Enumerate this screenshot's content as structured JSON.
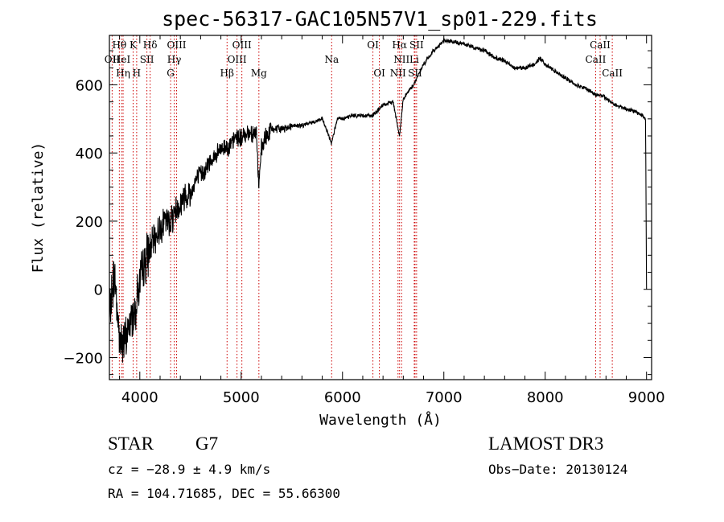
{
  "chart_data": {
    "type": "line",
    "title": "spec-56317-GAC105N57V1_sp01-229.fits",
    "xlabel": "Wavelength (Å)",
    "ylabel": "Flux (relative)",
    "xlim": [
      3700,
      9050
    ],
    "ylim": [
      -265,
      745
    ],
    "xticks": [
      4000,
      5000,
      6000,
      7000,
      8000,
      9000
    ],
    "xtick_labels": [
      "4000",
      "5000",
      "6000",
      "7000",
      "8000",
      "9000"
    ],
    "yticks": [
      -200,
      0,
      200,
      400,
      600
    ],
    "ytick_labels": [
      "−200",
      "0",
      "200",
      "400",
      "600"
    ],
    "spectrum": {
      "x": [
        3700,
        3750,
        3800,
        3850,
        3900,
        3950,
        4000,
        4050,
        4100,
        4150,
        4200,
        4250,
        4300,
        4350,
        4400,
        4450,
        4500,
        4550,
        4600,
        4650,
        4700,
        4750,
        4800,
        4850,
        4900,
        4950,
        5000,
        5050,
        5100,
        5150,
        5175,
        5200,
        5250,
        5300,
        5400,
        5500,
        5600,
        5700,
        5800,
        5890,
        5950,
        6000,
        6100,
        6200,
        6300,
        6400,
        6500,
        6563,
        6600,
        6700,
        6800,
        6900,
        7000,
        7100,
        7200,
        7300,
        7400,
        7500,
        7600,
        7700,
        7800,
        7900,
        7950,
        8000,
        8100,
        8200,
        8300,
        8400,
        8500,
        8550,
        8600,
        8700,
        8800,
        8900,
        8960,
        8990,
        9000
      ],
      "y": [
        -80,
        50,
        -150,
        -160,
        -100,
        -60,
        20,
        80,
        120,
        150,
        180,
        200,
        200,
        230,
        250,
        280,
        280,
        320,
        340,
        350,
        380,
        390,
        410,
        420,
        420,
        450,
        440,
        460,
        460,
        460,
        300,
        410,
        450,
        470,
        470,
        480,
        480,
        490,
        500,
        430,
        500,
        500,
        510,
        510,
        510,
        540,
        550,
        450,
        560,
        600,
        660,
        700,
        730,
        725,
        720,
        710,
        700,
        680,
        670,
        650,
        650,
        660,
        680,
        660,
        640,
        620,
        600,
        590,
        570,
        570,
        560,
        540,
        530,
        520,
        510,
        500,
        0
      ]
    },
    "emission_lines": [
      {
        "label": "OII",
        "wavelength": 3727,
        "row": 2
      },
      {
        "label": "Hθ",
        "wavelength": 3798,
        "row": 1
      },
      {
        "label": "HeI",
        "wavelength": 3820,
        "row": 2
      },
      {
        "label": "Hη",
        "wavelength": 3835,
        "row": 3
      },
      {
        "label": "K",
        "wavelength": 3934,
        "row": 1
      },
      {
        "label": "H",
        "wavelength": 3969,
        "row": 3
      },
      {
        "label": "SII",
        "wavelength": 4070,
        "row": 2
      },
      {
        "label": "Hδ",
        "wavelength": 4102,
        "row": 1
      },
      {
        "label": "OIII",
        "wavelength": 4363,
        "row": 1
      },
      {
        "label": "Hγ",
        "wavelength": 4340,
        "row": 2
      },
      {
        "label": "G",
        "wavelength": 4304,
        "row": 3
      },
      {
        "label": "Hβ",
        "wavelength": 4861,
        "row": 3
      },
      {
        "label": "OIII",
        "wavelength": 4959,
        "row": 2
      },
      {
        "label": "OIII",
        "wavelength": 5007,
        "row": 1
      },
      {
        "label": "Mg",
        "wavelength": 5175,
        "row": 3
      },
      {
        "label": "Na",
        "wavelength": 5893,
        "row": 2
      },
      {
        "label": "OI",
        "wavelength": 6300,
        "row": 1
      },
      {
        "label": "OI",
        "wavelength": 6364,
        "row": 3
      },
      {
        "label": "NII",
        "wavelength": 6548,
        "row": 3
      },
      {
        "label": "Hα",
        "wavelength": 6563,
        "row": 1
      },
      {
        "label": "NII",
        "wavelength": 6583,
        "row": 2
      },
      {
        "label": "Li",
        "wavelength": 6708,
        "row": 2
      },
      {
        "label": "SII",
        "wavelength": 6716,
        "row": 3
      },
      {
        "label": "SII",
        "wavelength": 6731,
        "row": 1
      },
      {
        "label": "CaII",
        "wavelength": 8498,
        "row": 2
      },
      {
        "label": "CaII",
        "wavelength": 8542,
        "row": 1
      },
      {
        "label": "CaII",
        "wavelength": 8662,
        "row": 3
      }
    ]
  },
  "info": {
    "class_label": "STAR",
    "subclass": "G7",
    "survey": "LAMOST DR3",
    "cz": "cz = −28.9 ± 4.9 km/s",
    "obs_date": "Obs−Date: 20130124",
    "coords": "RA = 104.71685, DEC =  55.66300"
  },
  "colors": {
    "spectrum": "#000000",
    "line_marker": "#cc0000",
    "axes": "#000000"
  }
}
